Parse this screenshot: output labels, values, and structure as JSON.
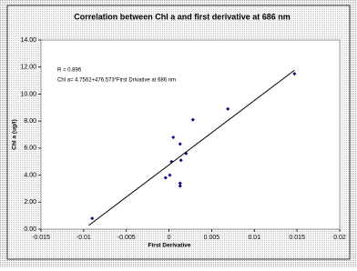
{
  "chart_data": {
    "type": "scatter",
    "title": "Correlation between Chl a and first derivative at 686 nm",
    "x_label": "First Derivative",
    "y_label": "Chl a (ug/l)",
    "annotations": [
      "R = 0.896",
      "Chl a= 4.7562+476.573*First Drivative at 686 nm"
    ],
    "xlim": [
      -0.015,
      0.02
    ],
    "xticks": [
      -0.015,
      -0.01,
      -0.005,
      0,
      0.005,
      0.01,
      0.015,
      0.02
    ],
    "ylim": [
      0,
      14
    ],
    "yticks": [
      {
        "value": 0,
        "label": "0.00"
      },
      {
        "value": 2,
        "label": "2.00"
      },
      {
        "value": 4,
        "label": "4.00"
      },
      {
        "value": 6,
        "label": "6.00"
      },
      {
        "value": 8,
        "label": "8.00"
      },
      {
        "value": 10,
        "label": "10.00"
      },
      {
        "value": 12,
        "label": "12.00"
      },
      {
        "value": 14,
        "label": "14.00"
      }
    ],
    "grid": false,
    "series": [
      {
        "color": "#000080",
        "marker": "diamond",
        "x": [
          -0.009,
          -0.0004,
          0.0001,
          0.0003,
          0.0005,
          0.0013,
          0.0014,
          0.0013,
          0.0013,
          0.002,
          0.0028,
          0.0069,
          0.0147
        ],
        "values": [
          0.8,
          3.8,
          4.0,
          5.0,
          6.8,
          6.3,
          5.1,
          3.4,
          3.2,
          5.6,
          8.1,
          8.9,
          11.5
        ]
      },
      {
        "color": "#000000",
        "marker": "line",
        "x": [
          -0.0094,
          0.0147
        ],
        "values": [
          0.28,
          11.76
        ]
      }
    ]
  }
}
